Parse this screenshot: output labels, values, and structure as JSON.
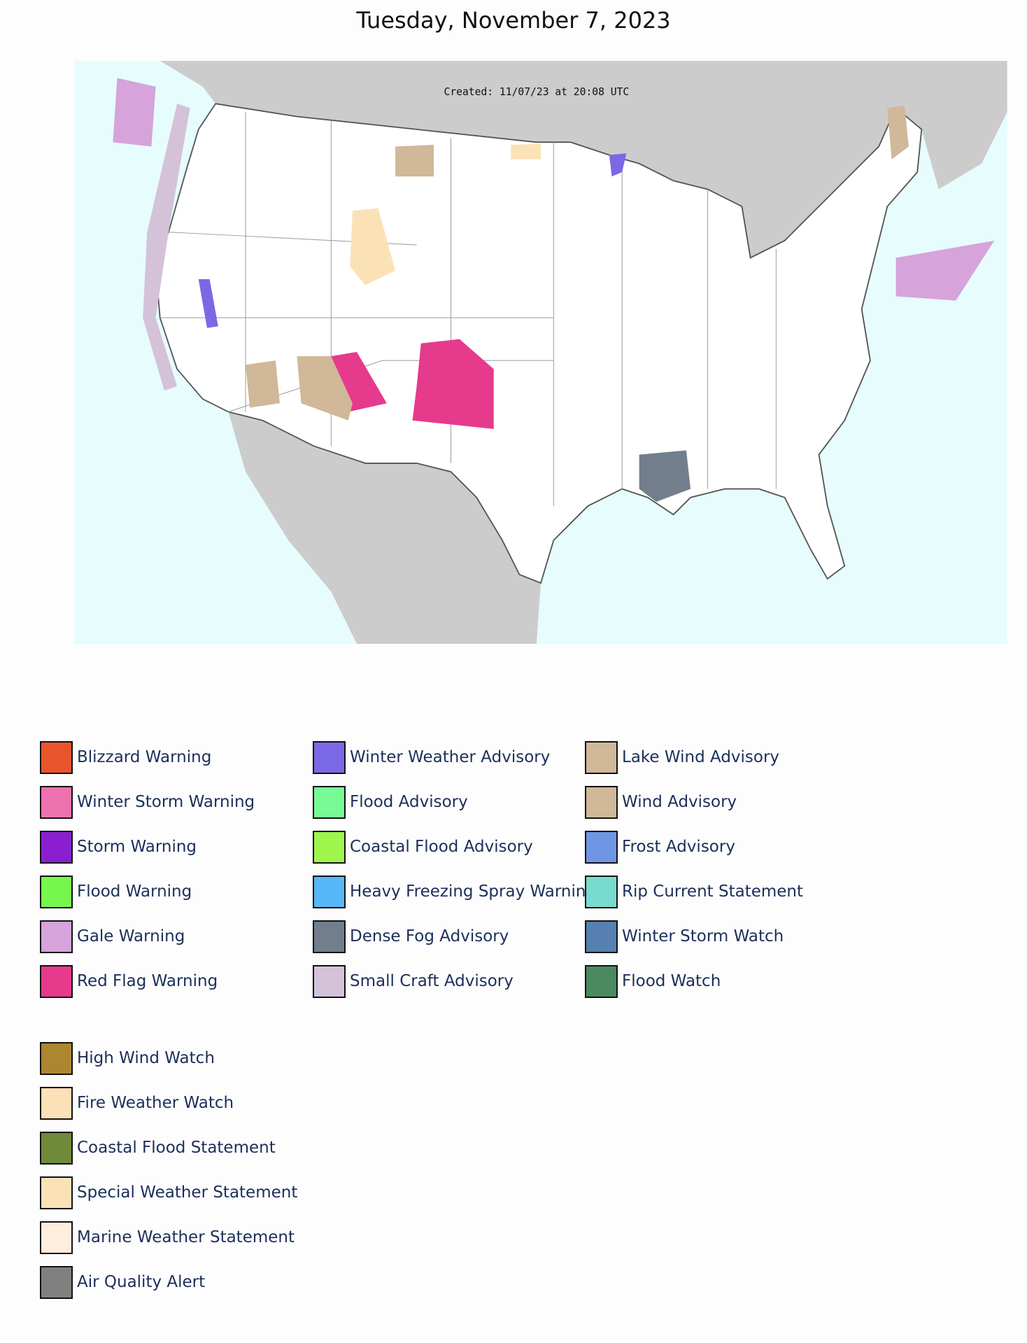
{
  "header": {
    "title": "Tuesday, November 7, 2023"
  },
  "map": {
    "created_label": "Created: 11/07/23 at 20:08 UTC"
  },
  "legend": {
    "columns": [
      [
        {
          "label": "Blizzard Warning",
          "color": "#e8552c"
        },
        {
          "label": "Winter Storm Warning",
          "color": "#ee72b0"
        },
        {
          "label": "Storm Warning",
          "color": "#8b1fcf"
        },
        {
          "label": "Flood Warning",
          "color": "#77f74d"
        },
        {
          "label": "Gale Warning",
          "color": "#d6a3da"
        },
        {
          "label": "Red Flag Warning",
          "color": "#e63a8c"
        }
      ],
      [
        {
          "label": "Winter Weather Advisory",
          "color": "#7b68e6"
        },
        {
          "label": "Flood Advisory",
          "color": "#78fa94"
        },
        {
          "label": "Coastal Flood Advisory",
          "color": "#9ef64d"
        },
        {
          "label": "Heavy Freezing Spray Warning",
          "color": "#56b8f6"
        },
        {
          "label": "Dense Fog Advisory",
          "color": "#727e8c"
        },
        {
          "label": "Small Craft Advisory",
          "color": "#d4c2d8"
        }
      ],
      [
        {
          "label": "Lake Wind Advisory",
          "color": "#d0b898"
        },
        {
          "label": "Wind Advisory",
          "color": "#d0b898"
        },
        {
          "label": "Frost Advisory",
          "color": "#6f96e4"
        },
        {
          "label": "Rip Current Statement",
          "color": "#77dccf"
        },
        {
          "label": "Winter Storm Watch",
          "color": "#5580b0"
        },
        {
          "label": "Flood Watch",
          "color": "#4a8a5e"
        }
      ]
    ],
    "extra": [
      {
        "label": "High Wind Watch",
        "color": "#ad8632"
      },
      {
        "label": "Fire Weather Watch",
        "color": "#fbe0b8"
      },
      {
        "label": "Coastal Flood Statement",
        "color": "#6f8a38"
      },
      {
        "label": "Special Weather Statement",
        "color": "#fbe2b6"
      },
      {
        "label": "Marine Weather Statement",
        "color": "#fdefdc"
      },
      {
        "label": "Air Quality Alert",
        "color": "#808080"
      }
    ]
  }
}
